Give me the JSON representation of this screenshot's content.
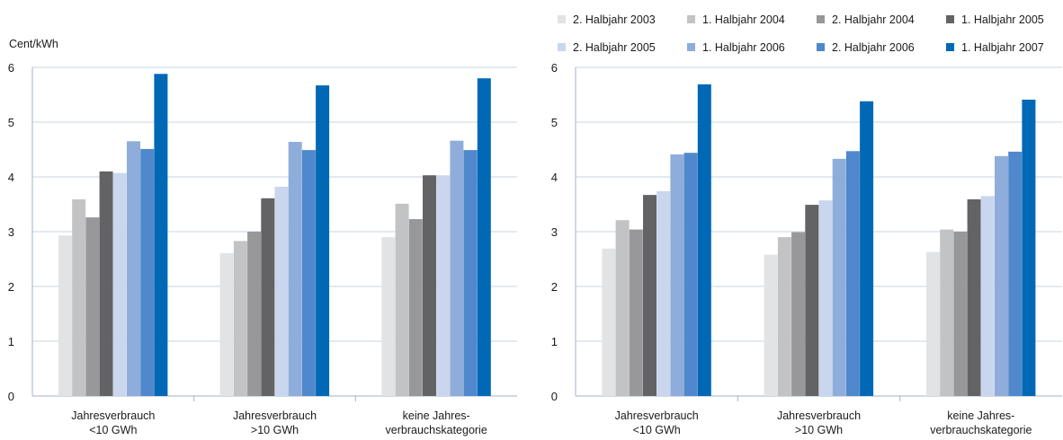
{
  "legend": {
    "rows": [
      [
        {
          "label": "2. Halbjahr 2003",
          "color": "#e2e3e4"
        },
        {
          "label": "1. Halbjahr 2004",
          "color": "#c2c3c5"
        },
        {
          "label": "2. Halbjahr 2004",
          "color": "#98989a"
        },
        {
          "label": "1. Halbjahr 2005",
          "color": "#636366"
        }
      ],
      [
        {
          "label": "2. Halbjahr 2005",
          "color": "#c9d6ee"
        },
        {
          "label": "1. Halbjahr 2006",
          "color": "#8fadda"
        },
        {
          "label": "2. Halbjahr 2006",
          "color": "#4f88cc"
        },
        {
          "label": "1. Halbjahr 2007",
          "color": "#0068b5"
        }
      ]
    ]
  },
  "unit_label": "Cent/kWh",
  "chart_data": [
    {
      "type": "bar",
      "ylabel": "Cent/kWh",
      "ylim": [
        0,
        6
      ],
      "yticks": [
        "0",
        "1",
        "2",
        "3",
        "4",
        "5",
        "6"
      ],
      "grid": true,
      "categories": [
        [
          "Jahresverbrauch",
          "<10 GWh"
        ],
        [
          "Jahresverbrauch",
          ">10 GWh"
        ],
        [
          "keine Jahres-",
          "verbrauchskategorie"
        ]
      ],
      "series": [
        {
          "name": "2. Halbjahr 2003",
          "values": [
            2.93,
            2.61,
            2.9
          ]
        },
        {
          "name": "1. Halbjahr 2004",
          "values": [
            3.59,
            2.83,
            3.51
          ]
        },
        {
          "name": "2. Halbjahr 2004",
          "values": [
            3.26,
            3.0,
            3.23
          ]
        },
        {
          "name": "1. Halbjahr 2005",
          "values": [
            4.1,
            3.61,
            4.03
          ]
        },
        {
          "name": "2. Halbjahr 2005",
          "values": [
            4.07,
            3.82,
            4.03
          ]
        },
        {
          "name": "1. Halbjahr 2006",
          "values": [
            4.65,
            4.64,
            4.66
          ]
        },
        {
          "name": "2. Halbjahr 2006",
          "values": [
            4.51,
            4.49,
            4.49
          ]
        },
        {
          "name": "1. Halbjahr 2007",
          "values": [
            5.88,
            5.67,
            5.8
          ]
        }
      ]
    },
    {
      "type": "bar",
      "ylim": [
        0,
        6
      ],
      "yticks": [
        "0",
        "1",
        "2",
        "3",
        "4",
        "5",
        "6"
      ],
      "grid": true,
      "categories": [
        [
          "Jahresverbrauch",
          "<10 GWh"
        ],
        [
          "Jahresverbrauch",
          ">10 GWh"
        ],
        [
          "keine Jahres-",
          "verbrauchskategorie"
        ]
      ],
      "series": [
        {
          "name": "2. Halbjahr 2003",
          "values": [
            2.69,
            2.58,
            2.63
          ]
        },
        {
          "name": "1. Halbjahr 2004",
          "values": [
            3.21,
            2.9,
            3.04
          ]
        },
        {
          "name": "2. Halbjahr 2004",
          "values": [
            3.04,
            2.99,
            3.0
          ]
        },
        {
          "name": "1. Halbjahr 2005",
          "values": [
            3.67,
            3.49,
            3.59
          ]
        },
        {
          "name": "2. Halbjahr 2005",
          "values": [
            3.74,
            3.57,
            3.65
          ]
        },
        {
          "name": "1. Halbjahr 2006",
          "values": [
            4.41,
            4.33,
            4.38
          ]
        },
        {
          "name": "2. Halbjahr 2006",
          "values": [
            4.44,
            4.47,
            4.46
          ]
        },
        {
          "name": "1. Halbjahr 2007",
          "values": [
            5.69,
            5.38,
            5.41
          ]
        }
      ]
    }
  ]
}
